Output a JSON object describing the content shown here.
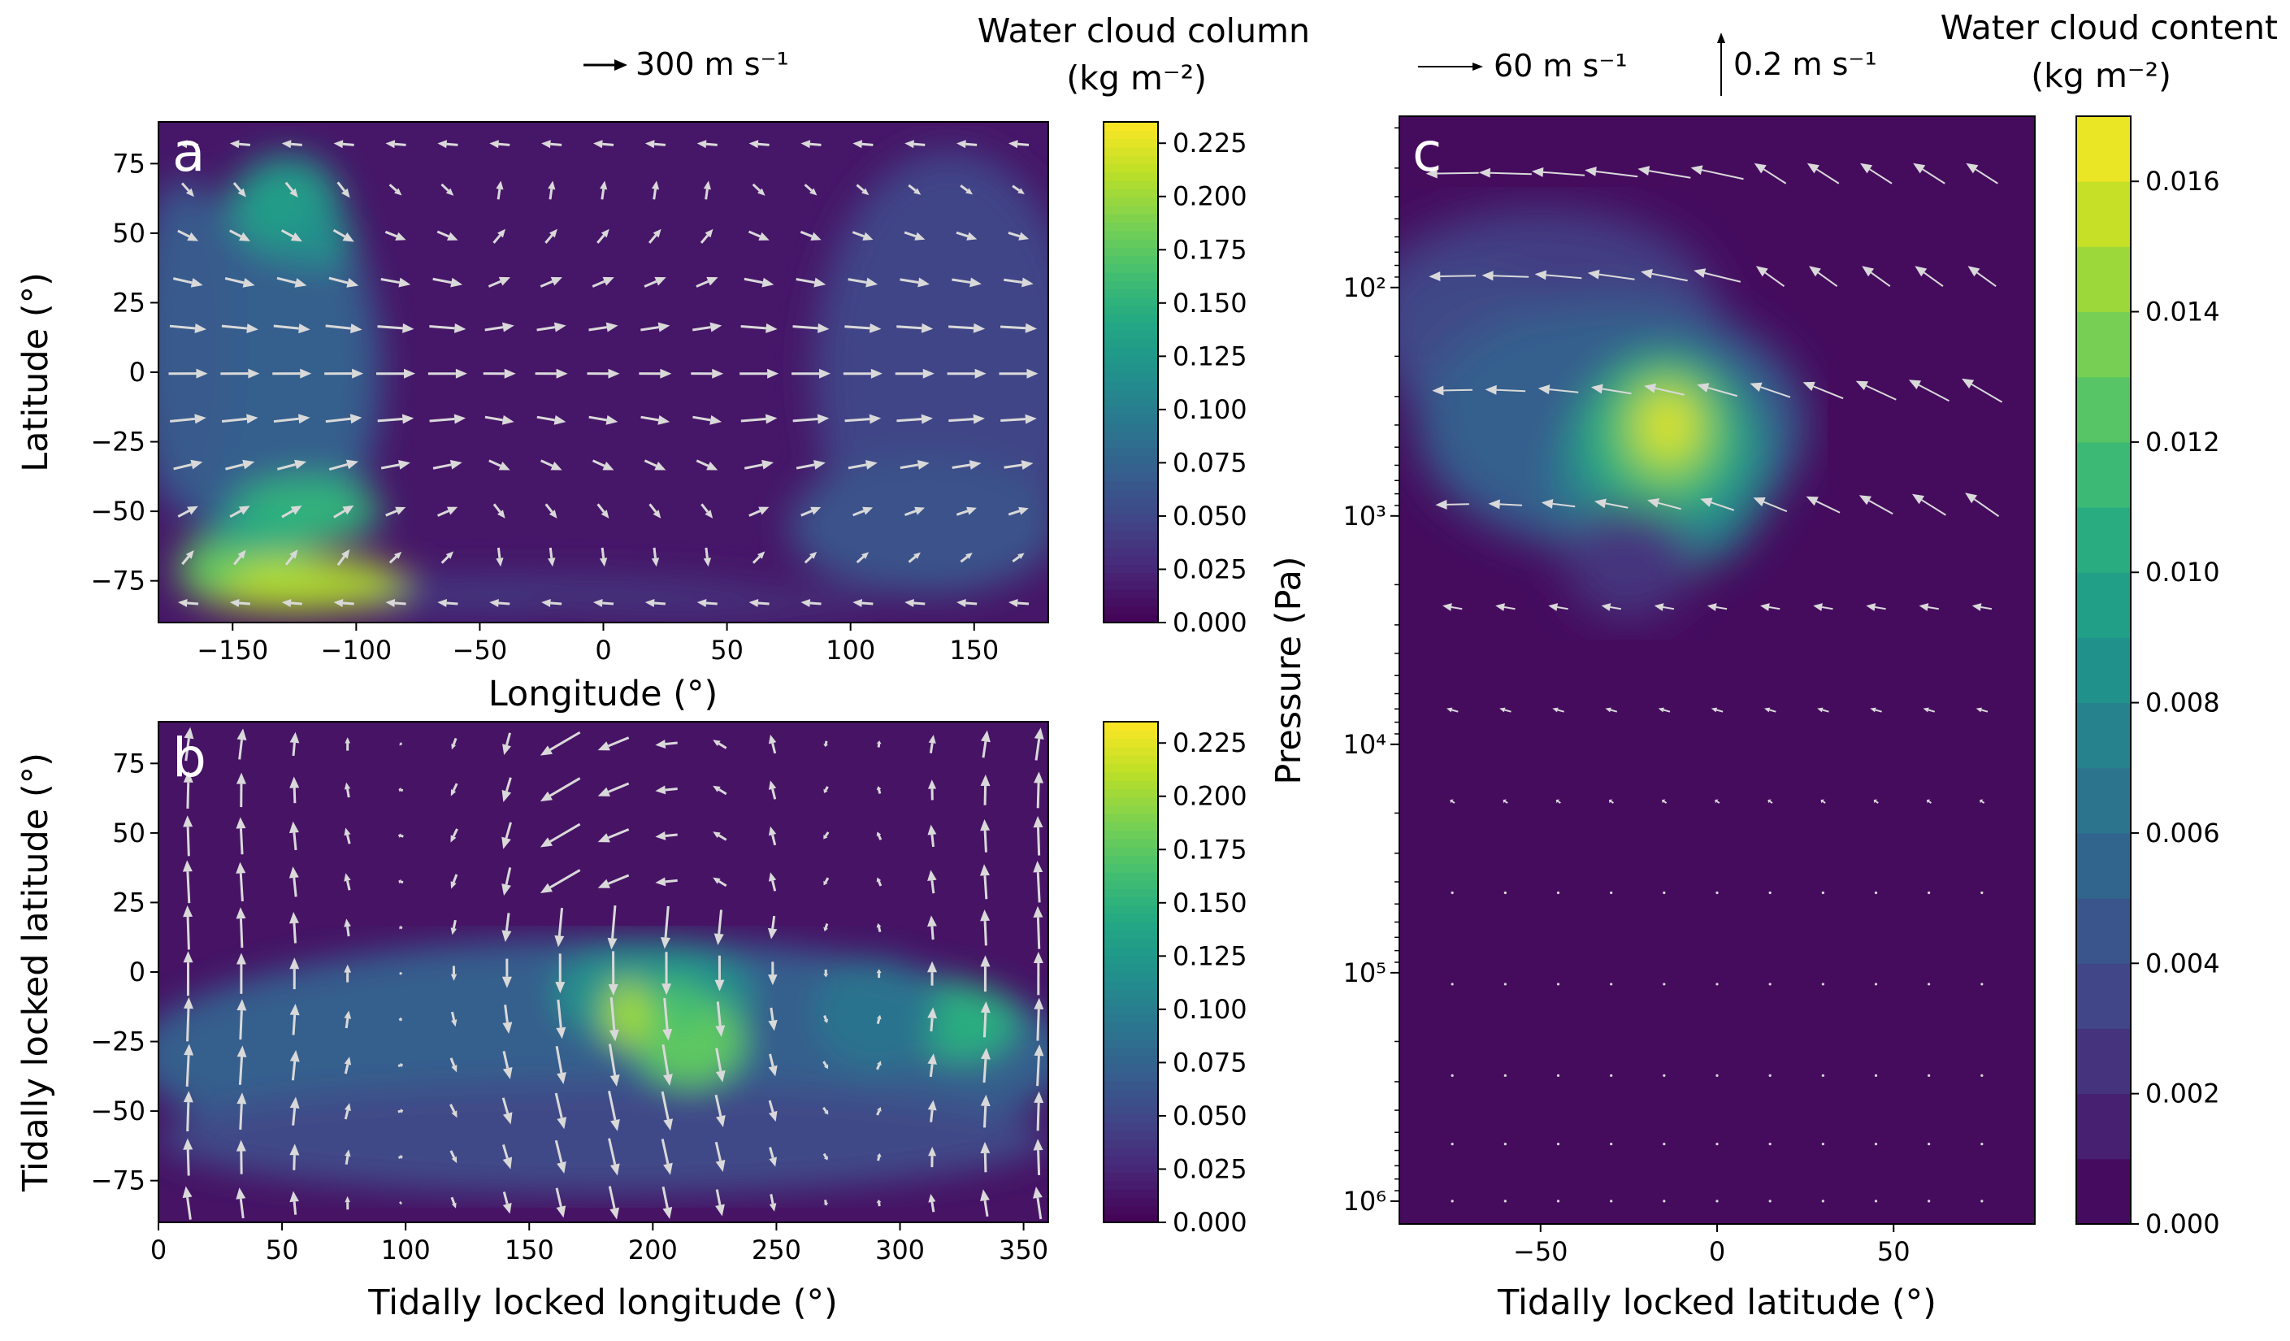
{
  "colors": {
    "viridis": [
      "#440154",
      "#482475",
      "#414487",
      "#355f8d",
      "#2a788e",
      "#21918c",
      "#22a884",
      "#44bf70",
      "#7ad151",
      "#bddf26",
      "#fde725"
    ],
    "background": "#ffffff",
    "arrow": "#d9d9d9"
  },
  "chart_data": [
    {
      "id": "a",
      "type": "heatmap",
      "panel_label": "a",
      "xlabel": "Longitude (°)",
      "ylabel": "Latitude (°)",
      "xlim": [
        -180,
        180
      ],
      "ylim": [
        -90,
        90
      ],
      "xticks": [
        -150,
        -100,
        -50,
        0,
        50,
        100,
        150
      ],
      "xtick_labels": [
        "−150",
        "−100",
        "−50",
        "0",
        "50",
        "100",
        "150"
      ],
      "yticks": [
        75,
        50,
        25,
        0,
        -25,
        -50,
        -75
      ],
      "ytick_labels": [
        "75",
        "50",
        "25",
        "0",
        "−25",
        "−50",
        "−75"
      ],
      "colorbar": {
        "title_line1": "Water cloud column",
        "title_line2": "(kg m⁻²)",
        "range": [
          0,
          0.235
        ],
        "ticks": [
          0.225,
          0.2,
          0.175,
          0.15,
          0.125,
          0.1,
          0.075,
          0.05,
          0.025,
          0.0
        ],
        "tick_labels": [
          "0.225",
          "0.200",
          "0.175",
          "0.150",
          "0.125",
          "0.100",
          "0.075",
          "0.050",
          "0.025",
          "0.000"
        ]
      },
      "reference_vectors": [
        {
          "label": "300 m s⁻¹",
          "direction": "right"
        }
      ]
    },
    {
      "id": "b",
      "type": "heatmap",
      "panel_label": "b",
      "xlabel": "Tidally locked longitude (°)",
      "ylabel": "Tidally locked latitude (°)",
      "xlim": [
        0,
        360
      ],
      "ylim": [
        -90,
        90
      ],
      "xticks": [
        0,
        50,
        100,
        150,
        200,
        250,
        300,
        350
      ],
      "xtick_labels": [
        "0",
        "50",
        "100",
        "150",
        "200",
        "250",
        "300",
        "350"
      ],
      "yticks": [
        75,
        50,
        25,
        0,
        -25,
        -50,
        -75
      ],
      "ytick_labels": [
        "75",
        "50",
        "25",
        "0",
        "−25",
        "−50",
        "−75"
      ],
      "colorbar": {
        "ticks": [
          0.225,
          0.2,
          0.175,
          0.15,
          0.125,
          0.1,
          0.075,
          0.05,
          0.025,
          0.0
        ],
        "tick_labels": [
          "0.225",
          "0.200",
          "0.175",
          "0.150",
          "0.125",
          "0.100",
          "0.075",
          "0.050",
          "0.025",
          "0.000"
        ],
        "range": [
          0,
          0.235
        ]
      }
    },
    {
      "id": "c",
      "type": "heatmap",
      "panel_label": "c",
      "xlabel": "Tidally locked latitude (°)",
      "ylabel": "Pressure (Pa)",
      "xlim": [
        -90,
        90
      ],
      "ylog_range": [
        1.25,
        6.1
      ],
      "xticks": [
        -50,
        0,
        50
      ],
      "xtick_labels": [
        "−50",
        "0",
        "50"
      ],
      "ytick_exponents": [
        2,
        3,
        4,
        5,
        6
      ],
      "ytick_labels": [
        "10²",
        "10³",
        "10⁴",
        "10⁵",
        "10⁶"
      ],
      "colorbar": {
        "title_line1": "Water cloud content",
        "title_line2": "(kg m⁻²)",
        "range": [
          0,
          0.017
        ],
        "levels": 17,
        "ticks": [
          0.016,
          0.014,
          0.012,
          0.01,
          0.008,
          0.006,
          0.004,
          0.002,
          0.0
        ],
        "tick_labels": [
          "0.016",
          "0.014",
          "0.012",
          "0.010",
          "0.008",
          "0.006",
          "0.004",
          "0.002",
          "0.000"
        ]
      },
      "reference_vectors": [
        {
          "label": "60 m s⁻¹",
          "direction": "right"
        },
        {
          "label": "0.2 m s⁻¹",
          "direction": "up"
        }
      ]
    }
  ]
}
